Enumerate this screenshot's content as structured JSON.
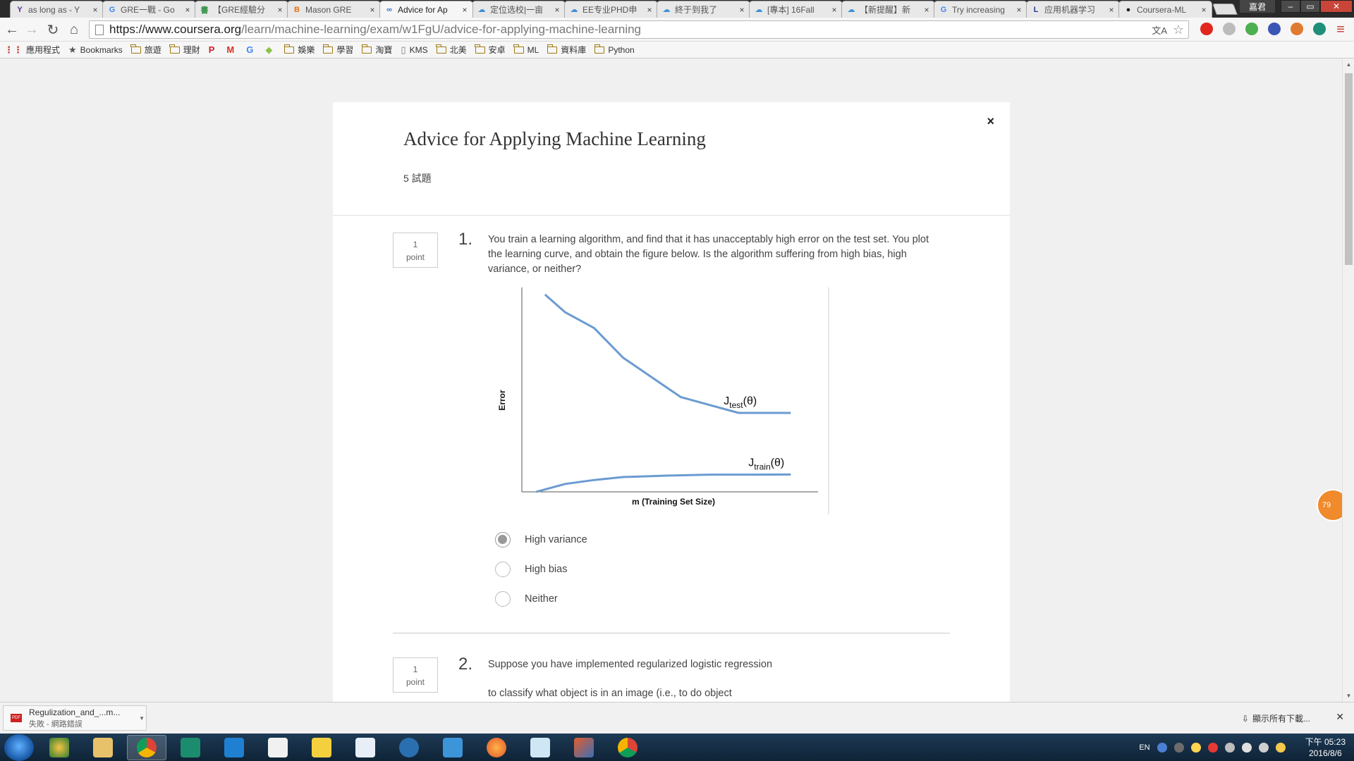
{
  "browser": {
    "tabs": [
      {
        "label": "as long as - Y",
        "icon": "Y",
        "color": "#5b2d90",
        "active": false
      },
      {
        "label": "GRE一戰 - Go",
        "icon": "G",
        "color": "#4285f4",
        "active": false
      },
      {
        "label": "【GRE經驗分",
        "icon": "書",
        "color": "#2b8a3e",
        "active": false
      },
      {
        "label": "Mason GRE",
        "icon": "B",
        "color": "#e8710a",
        "active": false
      },
      {
        "label": "Advice for Ap",
        "icon": "∞",
        "color": "#2a73cc",
        "active": true
      },
      {
        "label": "定位选校|一亩",
        "icon": "☁",
        "color": "#3b8fd6",
        "active": false
      },
      {
        "label": "EE专业PHD申",
        "icon": "☁",
        "color": "#3b8fd6",
        "active": false
      },
      {
        "label": "終于到我了",
        "icon": "☁",
        "color": "#3b8fd6",
        "active": false
      },
      {
        "label": "[專本] 16Fall",
        "icon": "☁",
        "color": "#3b8fd6",
        "active": false
      },
      {
        "label": "【新提醒】新",
        "icon": "☁",
        "color": "#3b8fd6",
        "active": false
      },
      {
        "label": "Try increasing",
        "icon": "G",
        "color": "#4285f4",
        "active": false
      },
      {
        "label": "应用机器学习",
        "icon": "L",
        "color": "#1f3f8f",
        "active": false
      },
      {
        "label": "Coursera-ML",
        "icon": "●",
        "color": "#222222",
        "active": false
      }
    ],
    "profile_label": "嘉君",
    "url_host": "https://www.coursera.org",
    "url_path": "/learn/machine-learning/exam/w1FgU/advice-for-applying-machine-learning"
  },
  "bookmarks": [
    {
      "label": "應用程式",
      "type": "apps"
    },
    {
      "label": "Bookmarks",
      "type": "star"
    },
    {
      "label": "旅遊",
      "type": "folder"
    },
    {
      "label": "理財",
      "type": "folder"
    },
    {
      "label": "",
      "type": "pinterest"
    },
    {
      "label": "",
      "type": "gmail"
    },
    {
      "label": "",
      "type": "google"
    },
    {
      "label": "",
      "type": "android"
    },
    {
      "label": "娛樂",
      "type": "folder"
    },
    {
      "label": "學習",
      "type": "folder"
    },
    {
      "label": "淘寶",
      "type": "folder"
    },
    {
      "label": "KMS",
      "type": "page"
    },
    {
      "label": "北美",
      "type": "folder"
    },
    {
      "label": "安卓",
      "type": "folder"
    },
    {
      "label": "ML",
      "type": "folder"
    },
    {
      "label": "資料庫",
      "type": "folder"
    },
    {
      "label": "Python",
      "type": "folder"
    }
  ],
  "quiz": {
    "title": "Advice for Applying Machine Learning",
    "question_count": "5 試題",
    "close_glyph": "×"
  },
  "questions": [
    {
      "number": "1.",
      "points": "1",
      "points_unit": "point",
      "text": "You train a learning algorithm, and find that it has unacceptably high error on the test set. You plot the learning curve, and obtain the figure below. Is the algorithm suffering from high bias, high variance, or neither?",
      "options": [
        {
          "label": "High variance",
          "checked": true
        },
        {
          "label": "High bias",
          "checked": false
        },
        {
          "label": "Neither",
          "checked": false
        }
      ]
    },
    {
      "number": "2.",
      "points": "1",
      "points_unit": "point",
      "text_line1": "Suppose you have implemented regularized logistic regression",
      "text_line2": "to classify what object is in an image (i.e., to do object"
    }
  ],
  "chart_data": {
    "type": "line",
    "xlabel": "m (Training Set Size)",
    "ylabel": "Error",
    "series": [
      {
        "name": "J_test(θ)",
        "label_main": "J",
        "label_sub": "test",
        "label_tail": "(θ)",
        "color": "#6b9bd1",
        "x": [
          0.08,
          0.15,
          0.25,
          0.35,
          0.45,
          0.55,
          0.65,
          0.75,
          0.93
        ],
        "y": [
          1.0,
          0.91,
          0.83,
          0.68,
          0.58,
          0.48,
          0.44,
          0.4,
          0.4
        ]
      },
      {
        "name": "J_train(θ)",
        "label_main": "J",
        "label_sub": "train",
        "label_tail": "(θ)",
        "color": "#6b9bd1",
        "x": [
          0.05,
          0.15,
          0.25,
          0.35,
          0.5,
          0.65,
          0.8,
          0.93
        ],
        "y": [
          0.0,
          0.04,
          0.06,
          0.075,
          0.082,
          0.087,
          0.087,
          0.088
        ]
      }
    ]
  },
  "downloads": {
    "file_name": "Regulization_and_...m...",
    "status": "失敗 - 網路錯誤",
    "show_all": "顯示所有下載..."
  },
  "page_badge": "79",
  "taskbar": {
    "language": "EN",
    "time": "下午 05:23",
    "date": "2016/8/6"
  }
}
